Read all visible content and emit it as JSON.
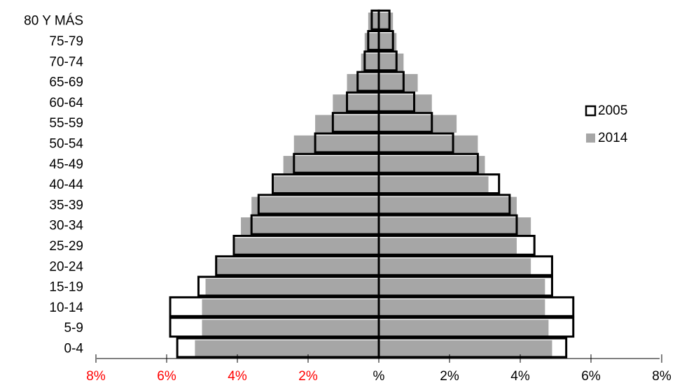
{
  "chart_data": {
    "type": "bar",
    "orientation": "horizontal",
    "subtype": "population-pyramid",
    "categories": [
      "80 Y MÁS",
      "75-79",
      "70-74",
      "65-69",
      "60-64",
      "55-59",
      "50-54",
      "45-49",
      "40-44",
      "35-39",
      "30-34",
      "25-29",
      "20-24",
      "15-19",
      "10-14",
      "5-9",
      "0-4"
    ],
    "series": [
      {
        "name": "2005",
        "style": "outline",
        "fill": "#ffffff",
        "stroke": "#000000",
        "left_values": [
          0.2,
          0.3,
          0.4,
          0.6,
          0.9,
          1.3,
          1.8,
          2.4,
          3.0,
          3.4,
          3.6,
          4.1,
          4.6,
          5.1,
          5.9,
          5.9,
          5.7
        ],
        "right_values": [
          0.3,
          0.4,
          0.5,
          0.7,
          1.0,
          1.5,
          2.1,
          2.8,
          3.4,
          3.7,
          3.9,
          4.4,
          4.9,
          4.9,
          5.5,
          5.5,
          5.3
        ]
      },
      {
        "name": "2014",
        "style": "filled",
        "fill": "#a6a6a6",
        "left_values": [
          0.3,
          0.4,
          0.5,
          0.9,
          1.3,
          1.8,
          2.4,
          2.7,
          3.0,
          3.6,
          3.9,
          4.1,
          4.6,
          4.9,
          5.0,
          5.0,
          5.2
        ],
        "right_values": [
          0.4,
          0.5,
          0.7,
          1.1,
          1.5,
          2.2,
          2.8,
          3.0,
          3.1,
          3.9,
          4.3,
          3.9,
          4.3,
          4.7,
          4.7,
          4.8,
          4.9
        ]
      }
    ],
    "x_ticks": [
      {
        "label": "8%",
        "color": "#ff0000"
      },
      {
        "label": "6%",
        "color": "#ff0000"
      },
      {
        "label": "4%",
        "color": "#ff0000"
      },
      {
        "label": "2%",
        "color": "#ff0000"
      },
      {
        "label": "%",
        "color": "#000000"
      },
      {
        "label": "2%",
        "color": "#000000"
      },
      {
        "label": "4%",
        "color": "#000000"
      },
      {
        "label": "6%",
        "color": "#000000"
      },
      {
        "label": "8%",
        "color": "#000000"
      }
    ],
    "xlim": [
      -8,
      8
    ],
    "grid": false,
    "legend_position": "right",
    "legend": [
      {
        "label": "2005",
        "style": "outline"
      },
      {
        "label": "2014",
        "style": "filled"
      }
    ]
  }
}
